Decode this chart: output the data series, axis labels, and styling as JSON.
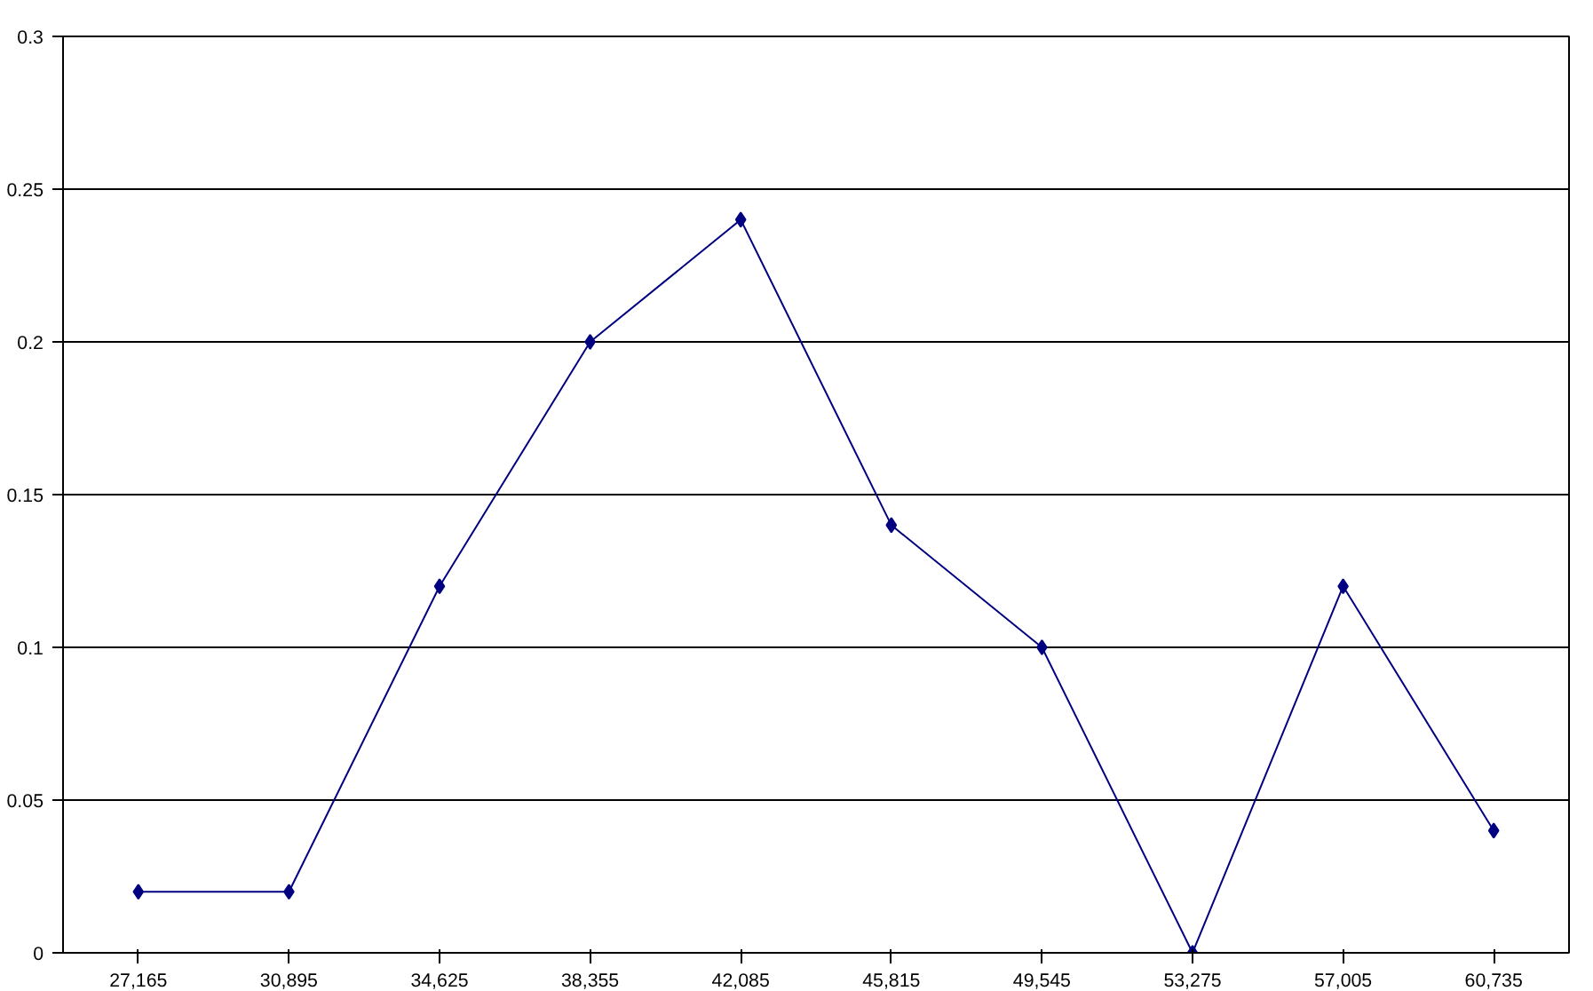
{
  "chart_data": {
    "type": "line",
    "categories": [
      "27,165",
      "30,895",
      "34,625",
      "38,355",
      "42,085",
      "45,815",
      "49,545",
      "53,275",
      "57,005",
      "60,735"
    ],
    "series": [
      {
        "color": "#000080",
        "values": [
          0.02,
          0.02,
          0.12,
          0.2,
          0.24,
          0.14,
          0.1,
          0,
          0.12,
          0.04
        ]
      }
    ],
    "ylim": [
      0,
      0.3
    ],
    "yticks": [
      0,
      0.05,
      0.1,
      0.15,
      0.2,
      0.25,
      0.3
    ],
    "grid": "y",
    "marker": "diamond",
    "line_style": "solid"
  }
}
